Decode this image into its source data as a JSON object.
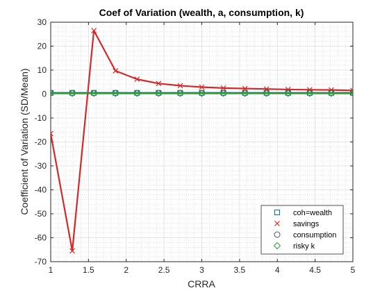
{
  "chart_data": {
    "type": "line",
    "title": "Coef of Variation (wealth, a, consumption, k)",
    "xlabel": "CRRA",
    "ylabel": "Coefficient of Variation (SD/Mean)",
    "xlim": [
      1,
      5
    ],
    "ylim": [
      -70,
      30
    ],
    "xticks": [
      1,
      1.5,
      2,
      2.5,
      3,
      3.5,
      4,
      4.5,
      5
    ],
    "xtick_labels": [
      "1",
      "1.5",
      "2",
      "2.5",
      "3",
      "3.5",
      "4",
      "4.5",
      "5"
    ],
    "yticks": [
      -70,
      -60,
      -50,
      -40,
      -30,
      -20,
      -10,
      0,
      10,
      20,
      30
    ],
    "ytick_labels": [
      "-70",
      "-60",
      "-50",
      "-40",
      "-30",
      "-20",
      "-10",
      "0",
      "10",
      "20",
      "30"
    ],
    "grid": true,
    "minor_grid": true,
    "legend_position": "bottom-right",
    "x": [
      1,
      1.2857,
      1.5714,
      1.8571,
      2.1429,
      2.4286,
      2.7143,
      3,
      3.2857,
      3.5714,
      3.8571,
      4.1429,
      4.4286,
      4.7143,
      5
    ],
    "series": [
      {
        "name": "coh=wealth",
        "color": "#0072BD",
        "marker": "square",
        "values": [
          0.5,
          0.5,
          0.5,
          0.5,
          0.5,
          0.5,
          0.5,
          0.5,
          0.5,
          0.5,
          0.5,
          0.5,
          0.5,
          0.5,
          0.5
        ]
      },
      {
        "name": "savings",
        "color": "#D62728",
        "marker": "x",
        "values": [
          -16.5,
          -65.5,
          26.5,
          9.7,
          6.2,
          4.4,
          3.5,
          2.9,
          2.5,
          2.3,
          2.1,
          1.9,
          1.8,
          1.7,
          1.5
        ]
      },
      {
        "name": "consumption",
        "color": "#4D4D6E",
        "marker": "circle",
        "values": [
          0.4,
          0.4,
          0.4,
          0.4,
          0.4,
          0.4,
          0.4,
          0.4,
          0.4,
          0.4,
          0.4,
          0.4,
          0.4,
          0.4,
          0.4
        ]
      },
      {
        "name": "risky k",
        "color": "#2CA02C",
        "marker": "diamond",
        "values": [
          0.3,
          0.3,
          0.3,
          0.3,
          0.3,
          0.3,
          0.3,
          0.3,
          0.3,
          0.3,
          0.3,
          0.3,
          0.3,
          0.3,
          0.3
        ]
      }
    ]
  }
}
